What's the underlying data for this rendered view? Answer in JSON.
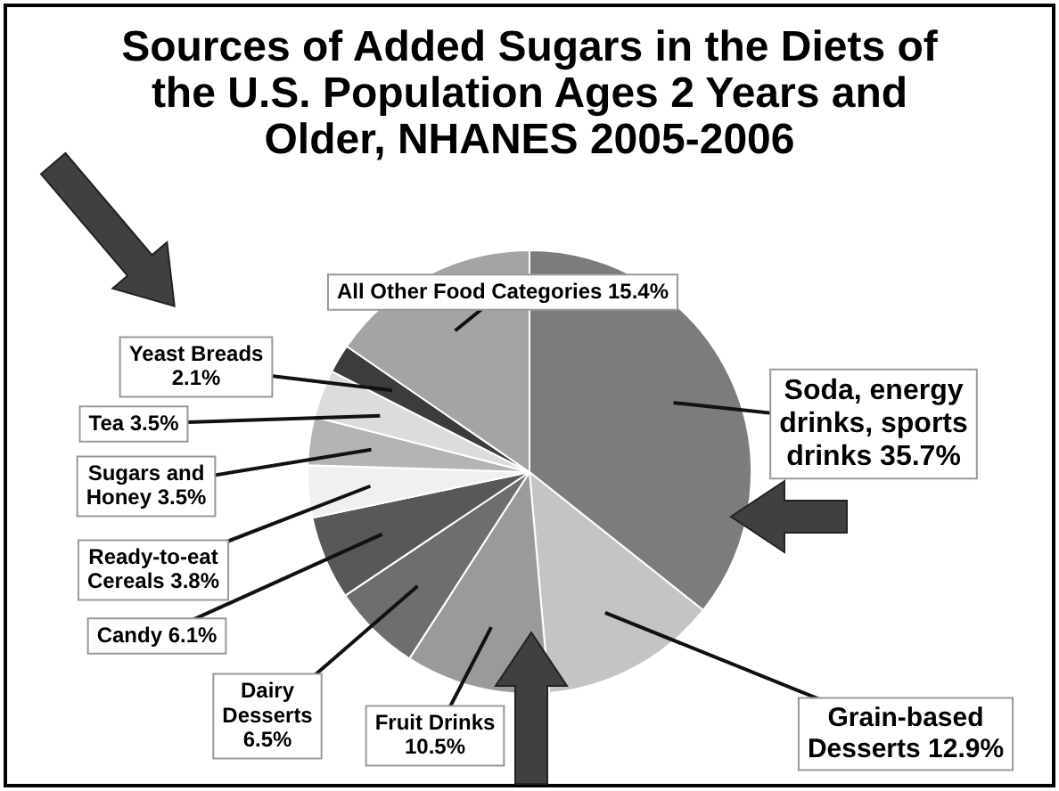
{
  "chart_data": {
    "type": "pie",
    "title": "Sources of Added Sugars in the Diets of the U.S. Population Ages 2 Years and Older, NHANES 2005-2006",
    "categories": [
      "Soda, energy drinks, sports drinks",
      "Grain-based Desserts",
      "Fruit Drinks",
      "Dairy Desserts",
      "Candy",
      "Ready-to-eat Cereals",
      "Sugars and Honey",
      "Tea",
      "Yeast Breads",
      "All Other Food Categories"
    ],
    "values": [
      35.7,
      12.9,
      10.5,
      6.5,
      6.1,
      3.8,
      3.5,
      3.5,
      2.1,
      15.4
    ],
    "value_labels": [
      "35.7%",
      "12.9%",
      "10.5%",
      "6.5%",
      "6.1%",
      "3.8%",
      "3.5%",
      "3.5%",
      "2.1%",
      "15.4%"
    ],
    "colors": [
      "#7c7c7c",
      "#c4c4c4",
      "#9a9a9a",
      "#6e6e6e",
      "#585858",
      "#f0f0f0",
      "#b4b4b4",
      "#dcdcdc",
      "#3c3c3c",
      "#a4a4a4"
    ],
    "legend": false
  }
}
